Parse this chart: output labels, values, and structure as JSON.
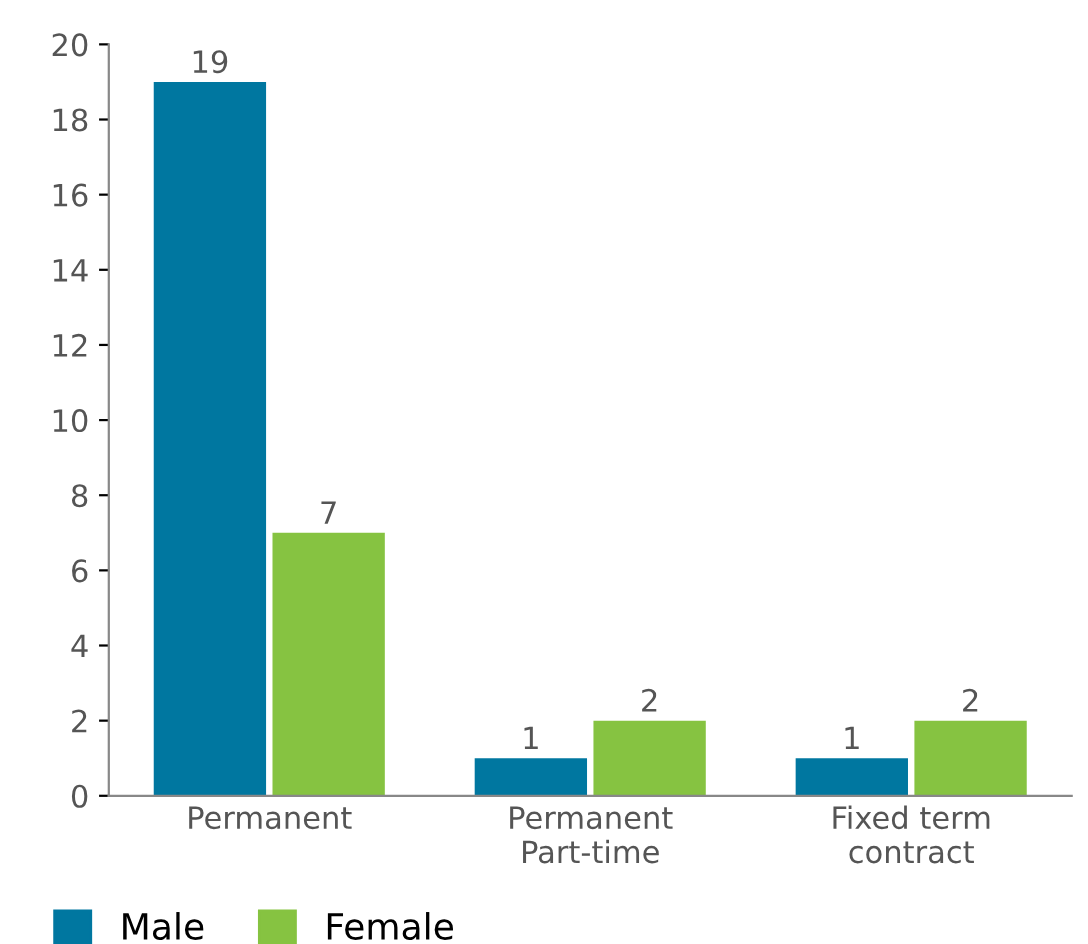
{
  "chart_data": {
    "type": "bar",
    "categories": [
      "Permanent",
      "Permanent\nPart-time",
      "Fixed term\ncontract"
    ],
    "series": [
      {
        "name": "Male",
        "color": "#0077a0",
        "values": [
          19,
          1,
          1
        ]
      },
      {
        "name": "Female",
        "color": "#86c341",
        "values": [
          7,
          2,
          2
        ]
      }
    ],
    "ylim": [
      0,
      20
    ],
    "yticks": [
      0,
      2,
      4,
      6,
      8,
      10,
      12,
      14,
      16,
      18,
      20
    ],
    "grid": false,
    "data_labels": true,
    "legend": "bottom left"
  }
}
